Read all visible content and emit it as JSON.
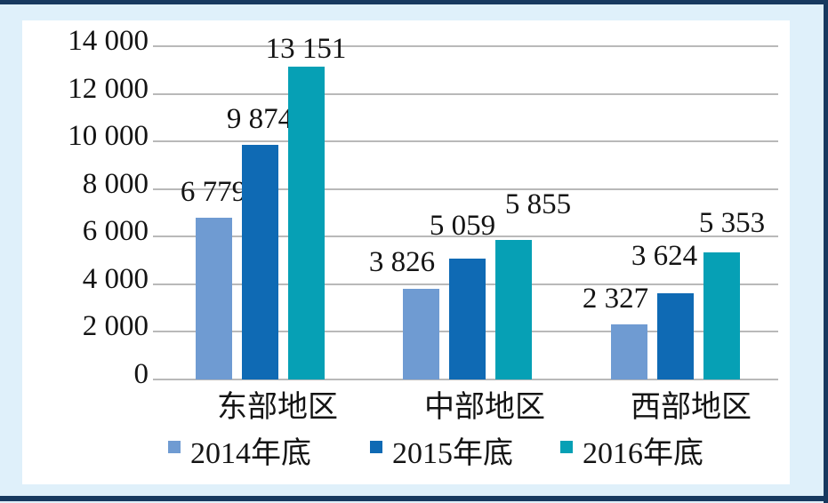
{
  "figure": {
    "background_color": "#dff0fa",
    "frame_color": "#17395f",
    "panel_color": "#ffffff",
    "text_color": "#141414"
  },
  "chart_data": {
    "type": "bar",
    "title": "",
    "xlabel": "",
    "ylabel": "",
    "categories": [
      "东部地区",
      "中部地区",
      "西部地区"
    ],
    "series": [
      {
        "name": "2014年底",
        "color": "#6f9bd2",
        "values": [
          6779,
          3826,
          2327
        ],
        "labels": [
          "6 779",
          "3 826",
          "2 327"
        ]
      },
      {
        "name": "2015年底",
        "color": "#0f6ab4",
        "values": [
          9874,
          5059,
          3624
        ],
        "labels": [
          "9 874",
          "5 059",
          "3 624"
        ]
      },
      {
        "name": "2016年底",
        "color": "#06a0b5",
        "values": [
          13151,
          5855,
          5353
        ],
        "labels": [
          "13 151",
          "5 855",
          "5 353"
        ]
      }
    ],
    "ylim": [
      0,
      14000
    ],
    "yticks": [
      0,
      2000,
      4000,
      6000,
      8000,
      10000,
      12000,
      14000
    ],
    "ytick_labels": [
      "0",
      "2 000",
      "4 000",
      "6 000",
      "8 000",
      "10 000",
      "12 000",
      "14 000"
    ],
    "grid": true,
    "gridline_color": "#b9b9b9",
    "legend_position": "bottom",
    "data_labels": "outside-end"
  }
}
